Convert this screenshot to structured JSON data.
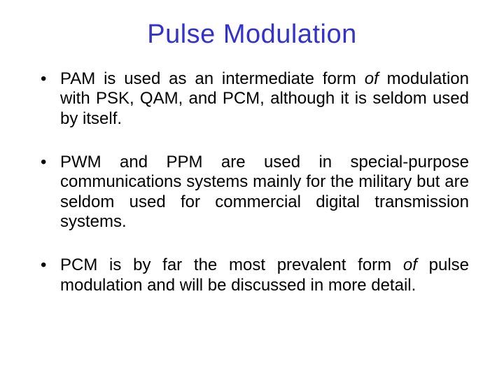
{
  "slide": {
    "title": "Pulse Modulation",
    "title_color": "#3333cc",
    "title_fontsize": 38,
    "body_fontsize": 24,
    "body_color": "#000000",
    "background_color": "#ffffff",
    "bullets": [
      {
        "pre": "PAM is used as an intermediate form ",
        "ital": "of",
        "post": " modulation with PSK, QAM, and PCM, although it is seldom used by itself."
      },
      {
        "pre": "PWM and PPM are used in special-purpose communications systems mainly for the military but are seldom used for commercial digital transmission systems.",
        "ital": "",
        "post": ""
      },
      {
        "pre": "PCM is by far the most prevalent form ",
        "ital": "of",
        "post": " pulse modulation and will be discussed in more detail."
      }
    ]
  }
}
